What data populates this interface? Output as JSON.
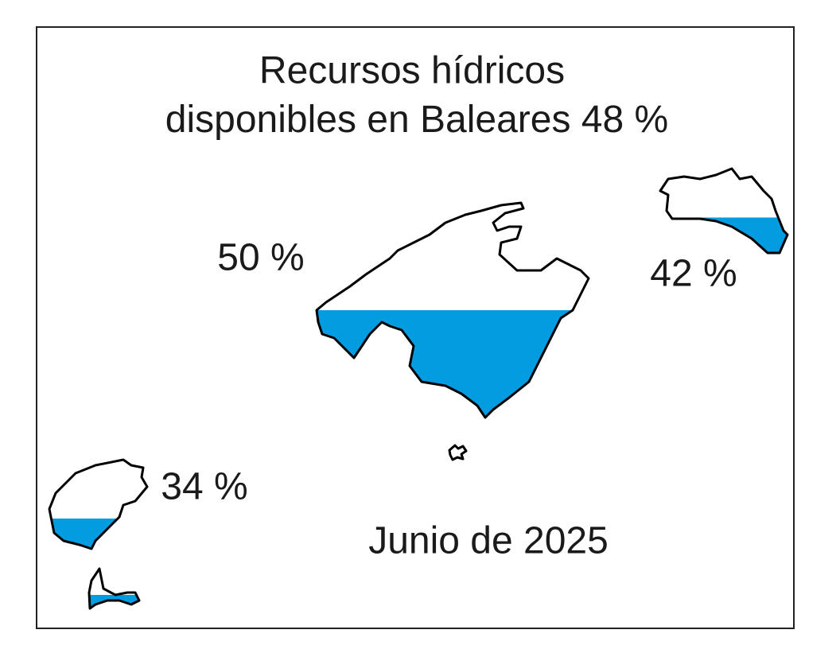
{
  "title": "Recursos hídricos",
  "subtitle": "disponibles en Baleares",
  "total": {
    "value": 48,
    "label": "48 %"
  },
  "fill_color": "#039ce0",
  "islands": [
    {
      "value": 50,
      "label": "50 %"
    },
    {
      "value": 42,
      "label": "42 %"
    },
    {
      "value": 34,
      "label": "34 %"
    }
  ],
  "date": "Junio de 2025"
}
